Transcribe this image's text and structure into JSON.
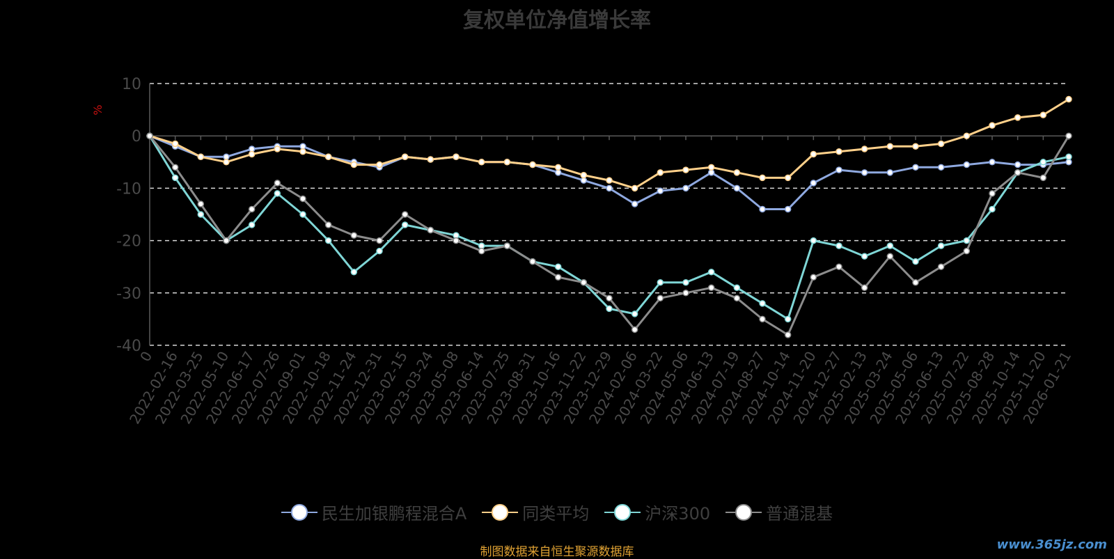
{
  "chart_data": {
    "type": "line",
    "title": "复权单位净值增长率",
    "ylabel": "%",
    "ylim": [
      -40,
      10
    ],
    "yticks": [
      -40,
      -30,
      -20,
      -10,
      0,
      10
    ],
    "grid": true,
    "legend_position": "bottom",
    "categories": [
      "0",
      "2022-02-16",
      "2022-03-25",
      "2022-05-10",
      "2022-06-17",
      "2022-07-26",
      "2022-09-01",
      "2022-10-18",
      "2022-11-24",
      "2022-12-31",
      "2023-02-15",
      "2023-03-24",
      "2023-05-08",
      "2023-06-14",
      "2023-07-25",
      "2023-08-31",
      "2023-10-16",
      "2023-11-22",
      "2023-12-29",
      "2024-02-06",
      "2024-03-22",
      "2024-05-06",
      "2024-06-13",
      "2024-07-19",
      "2024-08-27",
      "2024-10-14",
      "2024-11-20",
      "2024-12-27",
      "2025-02-13",
      "2025-03-24",
      "2025-05-06",
      "2025-06-13",
      "2025-07-22",
      "2025-08-28",
      "2025-10-14",
      "2025-11-20",
      "2026-01-21"
    ],
    "series": [
      {
        "name": "民生加银鹏程混合A",
        "color": "#8fa9e0",
        "values": [
          0,
          -2,
          -4,
          -4,
          -2.5,
          -2,
          -2,
          -4,
          -5,
          -6,
          -4,
          -4.5,
          -4,
          -5,
          -5,
          -5.5,
          -7,
          -8.5,
          -10,
          -13,
          -10.5,
          -10,
          -7,
          -10,
          -14,
          -14,
          -9,
          -6.5,
          -7,
          -7,
          -6,
          -6,
          -5.5,
          -5,
          -5.5,
          -5.5,
          -5
        ]
      },
      {
        "name": "同类平均",
        "color": "#ffd08a",
        "values": [
          0,
          -1.5,
          -4,
          -5,
          -3.5,
          -2.5,
          -3,
          -4,
          -5.5,
          -5.5,
          -4,
          -4.5,
          -4,
          -5,
          -5,
          -5.5,
          -6,
          -7.5,
          -8.5,
          -10,
          -7,
          -6.5,
          -6,
          -7,
          -8,
          -8,
          -3.5,
          -3,
          -2.5,
          -2,
          -2,
          -1.5,
          0,
          2,
          3.5,
          4,
          7
        ]
      },
      {
        "name": "沪深300",
        "color": "#7fd6d6",
        "values": [
          0,
          -8,
          -15,
          -20,
          -17,
          -11,
          -15,
          -20,
          -26,
          -22,
          -17,
          -18,
          -19,
          -21,
          -21,
          -24,
          -25,
          -28,
          -33,
          -34,
          -28,
          -28,
          -26,
          -29,
          -32,
          -35,
          -20,
          -21,
          -23,
          -21,
          -24,
          -21,
          -20,
          -14,
          -7,
          -5,
          -4
        ]
      },
      {
        "name": "普通混基",
        "color": "#8c8c8c",
        "values": [
          0,
          -6,
          -13,
          -20,
          -14,
          -9,
          -12,
          -17,
          -19,
          -20,
          -15,
          -18,
          -20,
          -22,
          -21,
          -24,
          -27,
          -28,
          -31,
          -37,
          -31,
          -30,
          -29,
          -31,
          -35,
          -38,
          -27,
          -25,
          -29,
          -23,
          -28,
          -25,
          -22,
          -11,
          -7,
          -8,
          0
        ]
      }
    ]
  },
  "footer": {
    "source": "制图数据来自恒生聚源数据库",
    "watermark": "www.365jz.com"
  }
}
